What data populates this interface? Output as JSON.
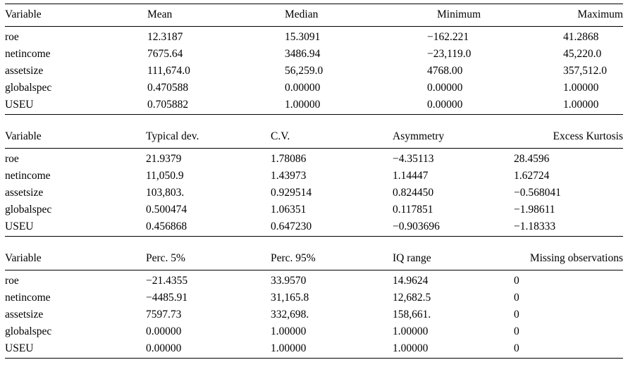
{
  "page": {
    "background_color": "#ffffff",
    "text_color": "#000000",
    "rule_color": "#000000",
    "description": "Descriptive statistics summary tables"
  },
  "tables": [
    {
      "headers": [
        "Variable",
        "Mean",
        "Median",
        "Minimum",
        "Maximum"
      ],
      "rows": [
        [
          "roe",
          "12.3187",
          "15.3091",
          "−162.221",
          "41.2868"
        ],
        [
          "netincome",
          "7675.64",
          "3486.94",
          "−23,119.0",
          "45,220.0"
        ],
        [
          "assetsize",
          "111,674.0",
          "56,259.0",
          "4768.00",
          "357,512.0"
        ],
        [
          "globalspec",
          "0.470588",
          "0.00000",
          "0.00000",
          "1.00000"
        ],
        [
          "USEU",
          "0.705882",
          "1.00000",
          "0.00000",
          "1.00000"
        ]
      ]
    },
    {
      "headers": [
        "Variable",
        "Typical dev.",
        "C.V.",
        "Asymmetry",
        "Excess Kurtosis"
      ],
      "rows": [
        [
          "roe",
          "21.9379",
          "1.78086",
          "−4.35113",
          "28.4596"
        ],
        [
          "netincome",
          "11,050.9",
          "1.43973",
          "1.14447",
          "1.62724"
        ],
        [
          "assetsize",
          "103,803.",
          "0.929514",
          "0.824450",
          "−0.568041"
        ],
        [
          "globalspec",
          "0.500474",
          "1.06351",
          "0.117851",
          "−1.98611"
        ],
        [
          "USEU",
          "0.456868",
          "0.647230",
          "−0.903696",
          "−1.18333"
        ]
      ]
    },
    {
      "headers": [
        "Variable",
        "Perc. 5%",
        "Perc. 95%",
        "IQ range",
        "Missing observations"
      ],
      "rows": [
        [
          "roe",
          "−21.4355",
          "33.9570",
          "14.9624",
          "0"
        ],
        [
          "netincome",
          "−4485.91",
          "31,165.8",
          "12,682.5",
          "0"
        ],
        [
          "assetsize",
          "7597.73",
          "332,698.",
          "158,661.",
          "0"
        ],
        [
          "globalspec",
          "0.00000",
          "1.00000",
          "1.00000",
          "0"
        ],
        [
          "USEU",
          "0.00000",
          "1.00000",
          "1.00000",
          "0"
        ]
      ]
    }
  ]
}
